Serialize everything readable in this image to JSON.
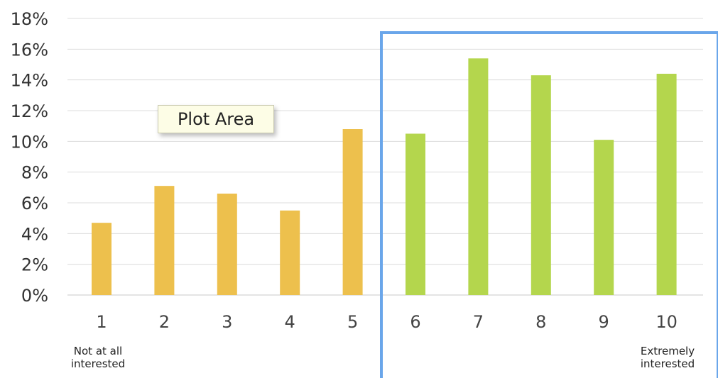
{
  "chart_data": {
    "type": "bar",
    "categories": [
      "1",
      "2",
      "3",
      "4",
      "5",
      "6",
      "7",
      "8",
      "9",
      "10"
    ],
    "values": [
      4.7,
      7.1,
      6.6,
      5.5,
      10.8,
      10.5,
      15.4,
      14.3,
      10.1,
      14.4
    ],
    "ylim": [
      0,
      18
    ],
    "yticks": [
      "0%",
      "2%",
      "4%",
      "6%",
      "8%",
      "10%",
      "12%",
      "14%",
      "16%",
      "18%"
    ],
    "grid": true,
    "colors": {
      "low": "#edc04d",
      "high": "#b4d64d",
      "grid": "#dcdcdc",
      "highlight": "#6aa6ea"
    },
    "tooltip": "Plot Area",
    "left_label": "Not at all\ninterested",
    "right_label": "Extremely\ninterested"
  }
}
